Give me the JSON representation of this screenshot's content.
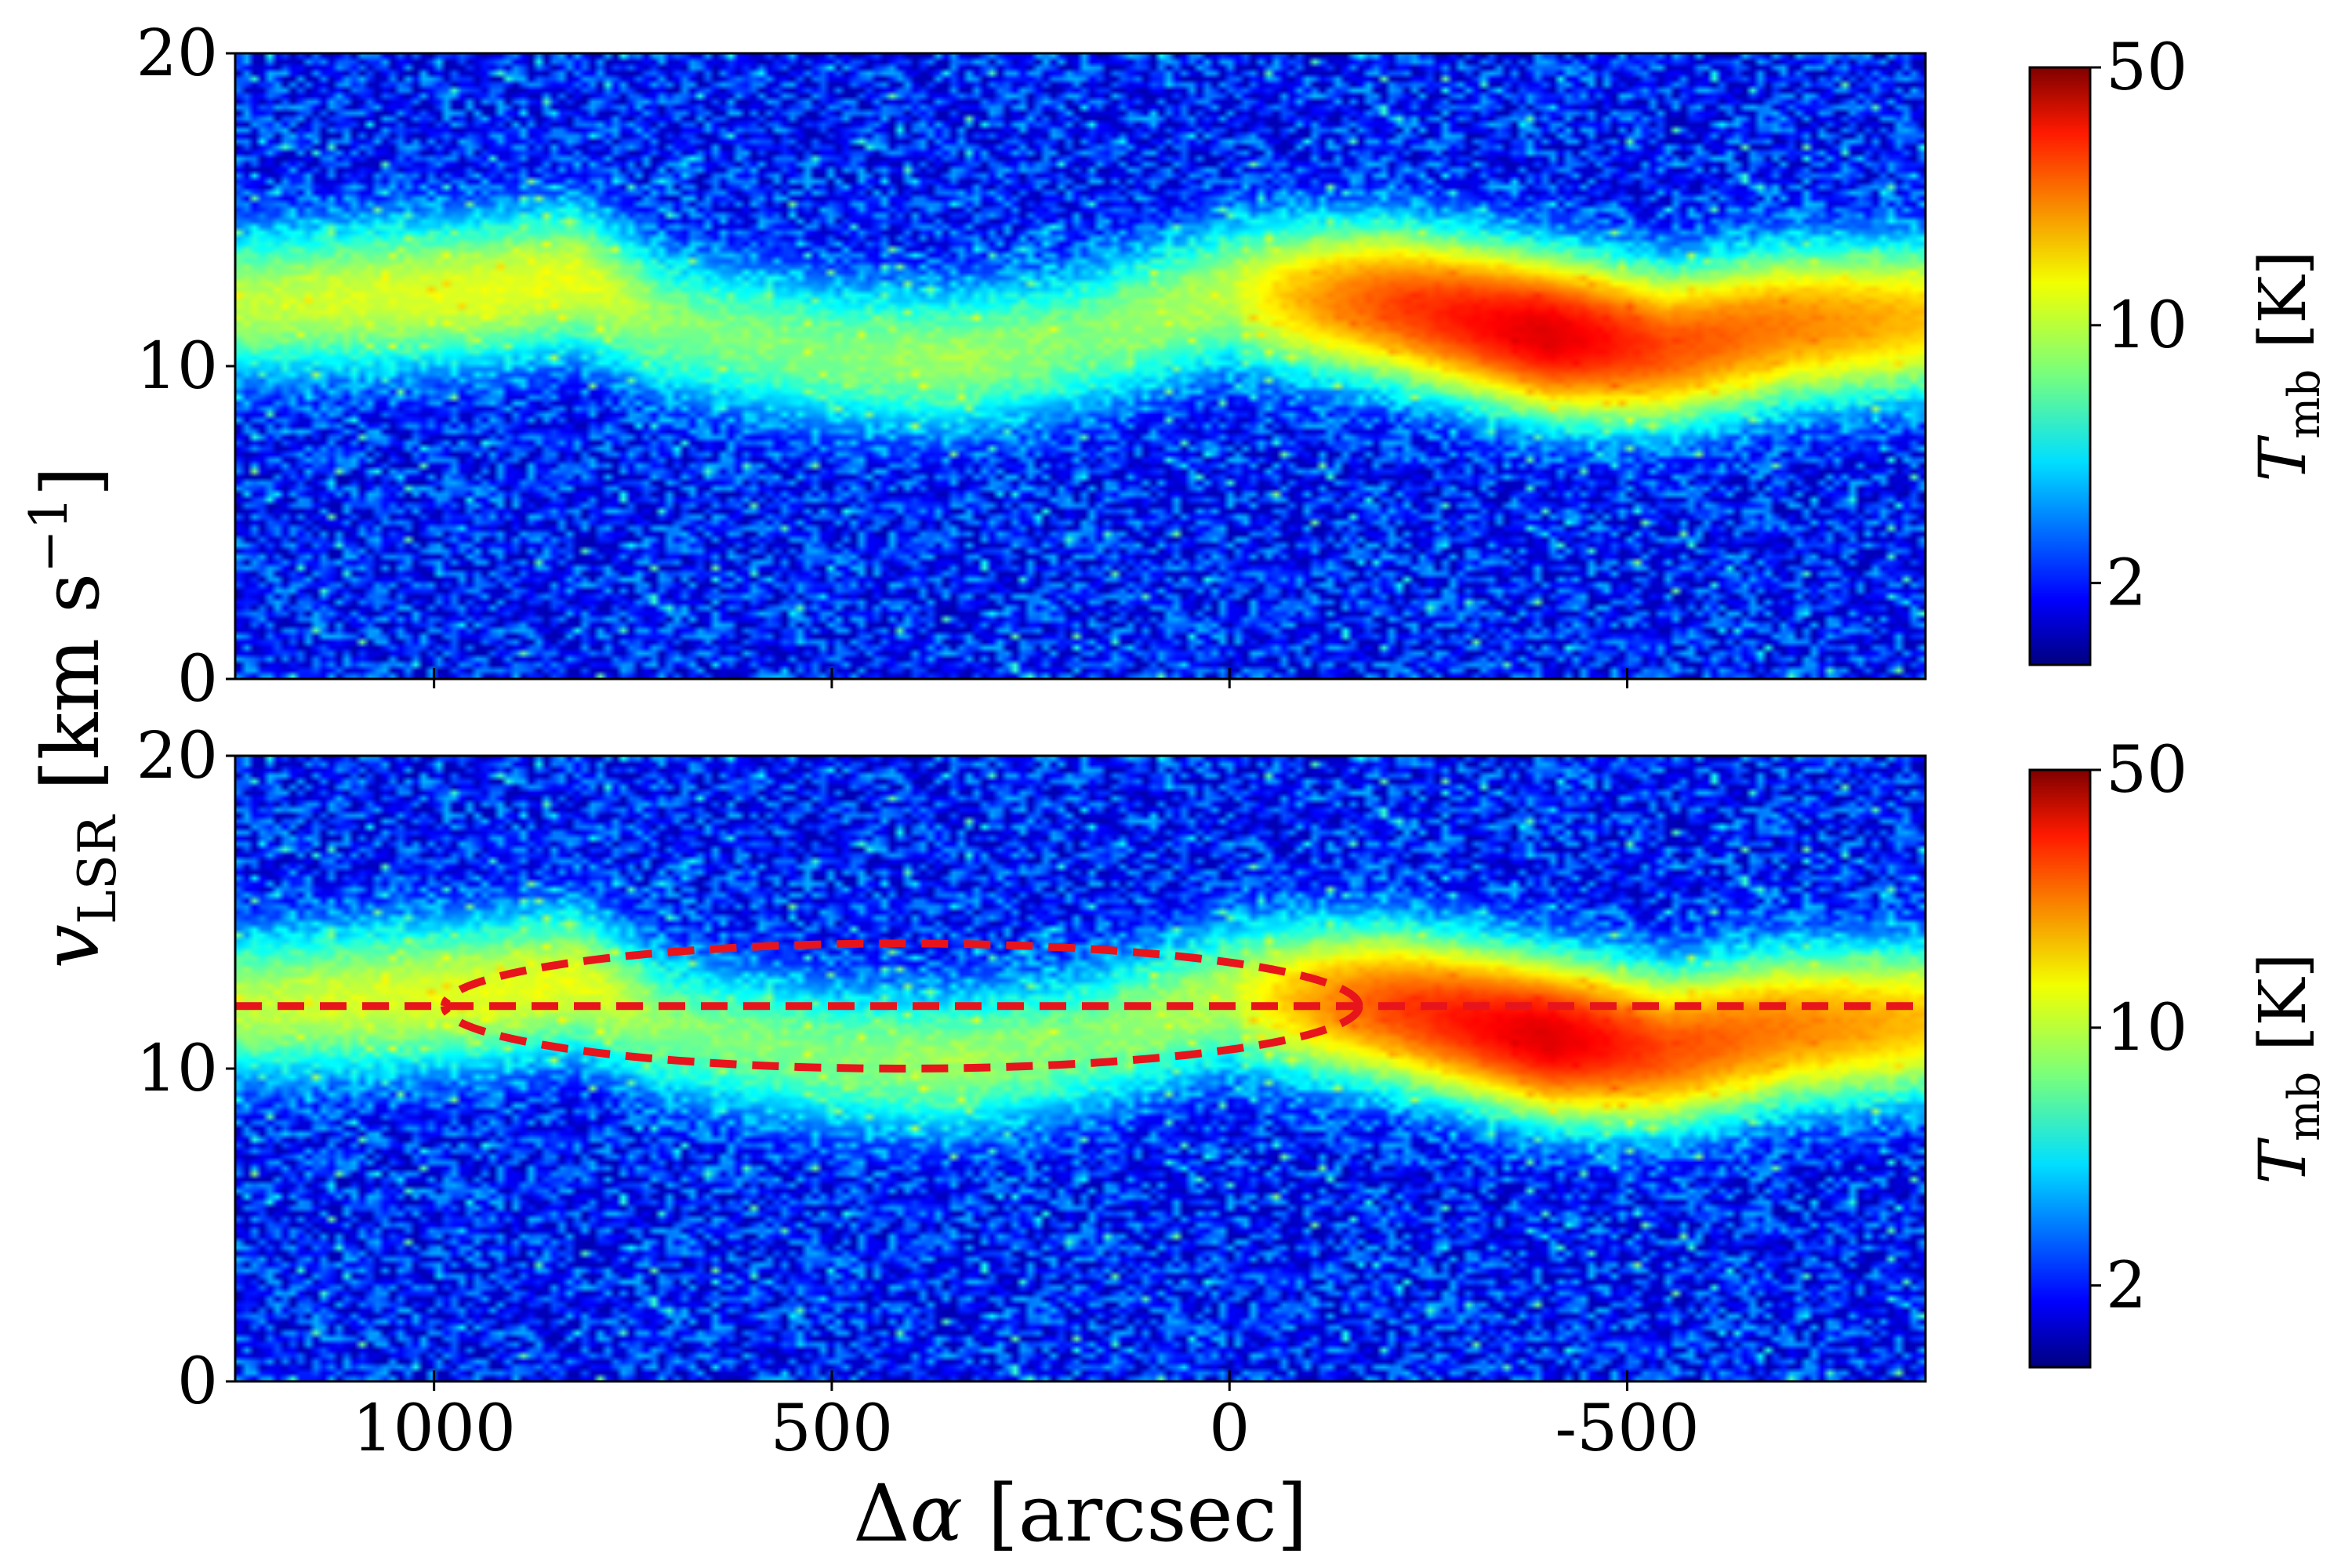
{
  "chart_data": {
    "type": "heatmap",
    "shared_xlabel": "Δα [arcsec]",
    "shared_ylabel": "v_LSR [km s^-1]",
    "x_axis": {
      "range": [
        1250,
        -875
      ],
      "reversed": true,
      "ticks": [
        1000,
        500,
        0,
        -500
      ],
      "tick_labels": [
        "1000",
        "500",
        "0",
        "-500"
      ]
    },
    "y_axis": {
      "range": [
        0,
        20
      ],
      "ticks": [
        0,
        10,
        20
      ],
      "tick_labels": [
        "0",
        "10",
        "20"
      ]
    },
    "colorbar": {
      "label": "T_mb [K]",
      "scale": "log",
      "range": [
        1.2,
        50
      ],
      "ticks": [
        2,
        10,
        50
      ],
      "tick_labels": [
        "2",
        "10",
        "50"
      ],
      "colormap": "jet"
    },
    "emission_ridge": {
      "description_points": [
        {
          "x": 1250,
          "v": 12.0,
          "t": 8
        },
        {
          "x": 950,
          "v": 12.4,
          "t": 10
        },
        {
          "x": 820,
          "v": 12.8,
          "t": 10
        },
        {
          "x": 700,
          "v": 11.3,
          "t": 6
        },
        {
          "x": 500,
          "v": 10.4,
          "t": 6
        },
        {
          "x": 350,
          "v": 10.2,
          "t": 7
        },
        {
          "x": 200,
          "v": 10.8,
          "t": 6
        },
        {
          "x": 0,
          "v": 12.3,
          "t": 8
        },
        {
          "x": -200,
          "v": 12.0,
          "t": 25
        },
        {
          "x": -400,
          "v": 11.0,
          "t": 40
        },
        {
          "x": -550,
          "v": 10.6,
          "t": 25
        },
        {
          "x": -700,
          "v": 11.3,
          "t": 20
        },
        {
          "x": -875,
          "v": 11.5,
          "t": 15
        }
      ]
    },
    "panels": [
      {
        "name": "top",
        "overlay": false
      },
      {
        "name": "bottom",
        "overlay": true,
        "overlay_color": "#e8141c",
        "overlay_lines": [
          {
            "style": "dashed",
            "kind": "horizontal",
            "v": 12.0,
            "x_range": [
              1250,
              -875
            ]
          },
          {
            "style": "dashed",
            "kind": "ellipse_upper",
            "x_center": 412,
            "x_half_width": 575,
            "v_center": 12.0,
            "v_amplitude": 2.0
          },
          {
            "style": "dashed",
            "kind": "ellipse_lower",
            "x_center": 412,
            "x_half_width": 575,
            "v_center": 12.0,
            "v_amplitude": 2.0
          }
        ]
      }
    ]
  }
}
